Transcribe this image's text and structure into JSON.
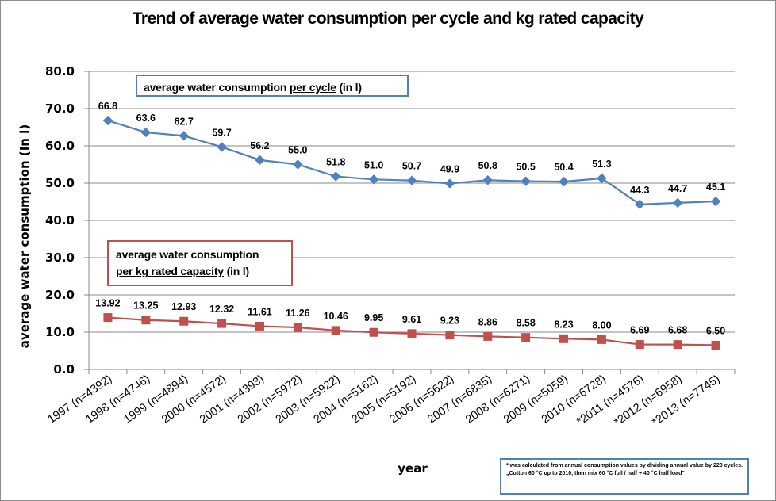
{
  "chart_data": {
    "type": "line",
    "title": "Trend of average water consumption per cycle and kg rated capacity",
    "xlabel": "year",
    "ylabel": "average water consumption  (In l)",
    "ylim": [
      0,
      80
    ],
    "yticks": [
      "0.0",
      "10.0",
      "20.0",
      "30.0",
      "40.0",
      "50.0",
      "60.0",
      "70.0",
      "80.0"
    ],
    "grid": true,
    "categories": [
      "1997 (n=4392)",
      "1998 (n=4746)",
      "1999 (n=4894)",
      "2000 (n=4572)",
      "2001 (n=4393)",
      "2002 (n=5972)",
      "2003 (n=5922)",
      "2004 (n=5162)",
      "2005 (n=5192)",
      "2006 (n=5622)",
      "2007 (n=6835)",
      "2008 (n=6271)",
      "2009 (n=5059)",
      "2010 (n=6728)",
      "*2011 (n=4576)",
      "*2012 (n=6958)",
      "*2013 (n=7745)"
    ],
    "series": [
      {
        "name": "average water consumption per cycle (in l)",
        "color": "#4f81bd",
        "marker": "diamond",
        "values": [
          66.8,
          63.6,
          62.7,
          59.7,
          56.2,
          55.0,
          51.8,
          51.0,
          50.7,
          49.9,
          50.8,
          50.5,
          50.4,
          51.3,
          44.3,
          44.7,
          45.1
        ],
        "labels": [
          "66.8",
          "63.6",
          "62.7",
          "59.7",
          "56.2",
          "55.0",
          "51.8",
          "51.0",
          "50.7",
          "49.9",
          "50.8",
          "50.5",
          "50.4",
          "51.3",
          "44.3",
          "44.7",
          "45.1"
        ]
      },
      {
        "name": "average water consumption per kg rated capacity (in l)",
        "color": "#c0504d",
        "marker": "square",
        "values": [
          13.92,
          13.25,
          12.93,
          12.32,
          11.61,
          11.26,
          10.46,
          9.95,
          9.61,
          9.23,
          8.86,
          8.58,
          8.23,
          8.0,
          6.69,
          6.68,
          6.5
        ],
        "labels": [
          "13.92",
          "13.25",
          "12.93",
          "12.32",
          "11.61",
          "11.26",
          "10.46",
          "9.95",
          "9.61",
          "9.23",
          "8.86",
          "8.58",
          "8.23",
          "8.00",
          "6.69",
          "6.68",
          "6.50"
        ]
      }
    ]
  },
  "legend": {
    "cycle": {
      "prefix": "average water consumption ",
      "emph": "per cycle",
      "suffix": " (in l)"
    },
    "kg": {
      "line1": "average water consumption",
      "emph": "per kg rated capacity",
      "suffix": " (in l)"
    }
  },
  "footnote": "* was calculated from annual consumption values by dividing annual value by 220 cycles. „Cotton 60 °C up to 2010, then mix 60 °C full / half + 40 °C half load\""
}
